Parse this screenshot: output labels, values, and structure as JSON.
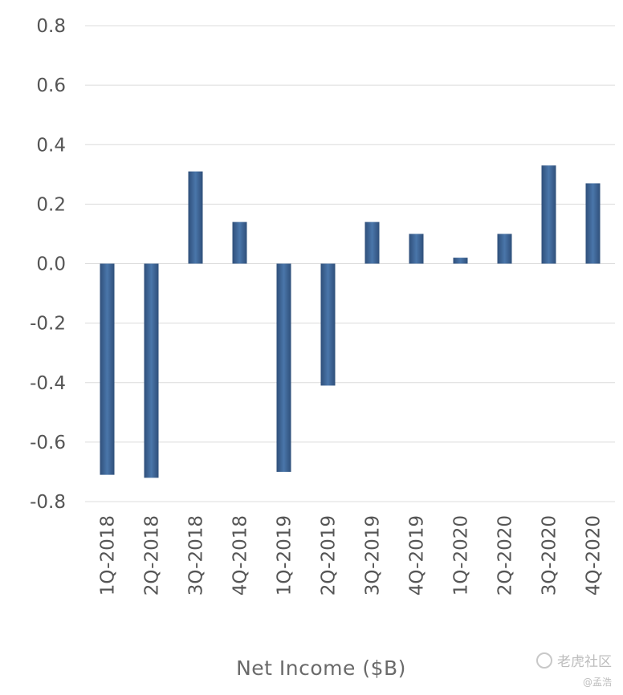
{
  "chart_data": {
    "type": "bar",
    "categories": [
      "1Q-2018",
      "2Q-2018",
      "3Q-2018",
      "4Q-2018",
      "1Q-2019",
      "2Q-2019",
      "3Q-2019",
      "4Q-2019",
      "1Q-2020",
      "2Q-2020",
      "3Q-2020",
      "4Q-2020"
    ],
    "values": [
      -0.71,
      -0.72,
      0.31,
      0.14,
      -0.7,
      -0.41,
      0.14,
      0.1,
      0.02,
      0.1,
      0.33,
      0.27
    ],
    "xlabel": "Net Income ($B)",
    "ylabel": "",
    "ylim": [
      -0.8,
      0.8
    ],
    "yticks": [
      "0.8",
      "0.6",
      "0.4",
      "0.2",
      "0.0",
      "-0.2",
      "-0.4",
      "-0.6",
      "-0.8"
    ],
    "grid": true,
    "bar_color": "#3f6496"
  },
  "watermark": {
    "main": "老虎社区",
    "sub": "@孟浩"
  }
}
